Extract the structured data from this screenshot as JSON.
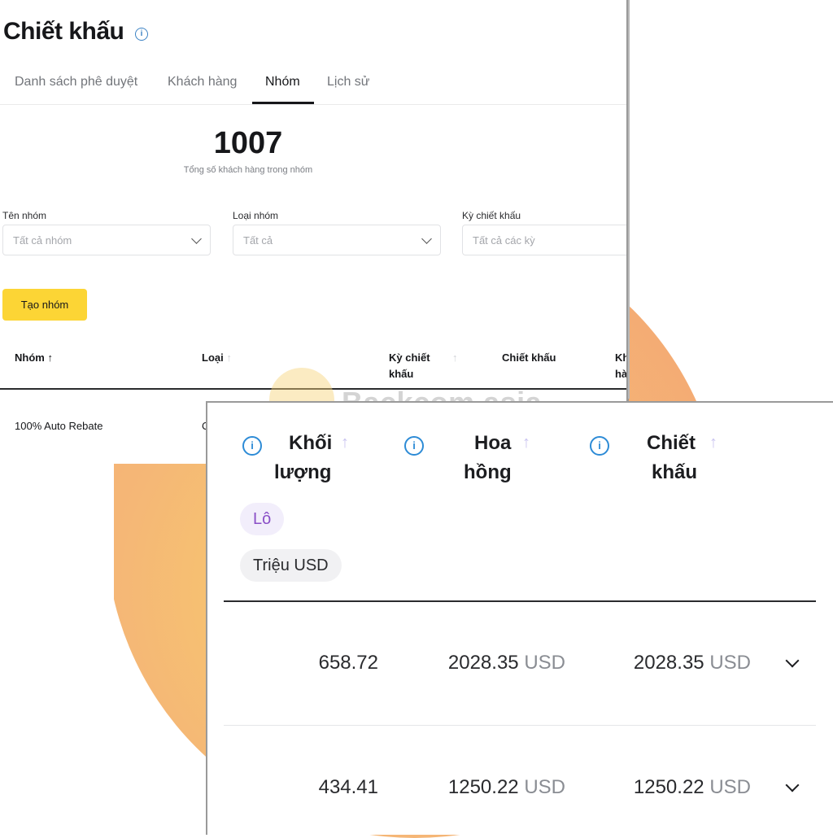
{
  "page": {
    "title": "Chiết khấu"
  },
  "tabs": [
    "Danh sách phê duyệt",
    "Khách hàng",
    "Nhóm",
    "Lịch sử"
  ],
  "active_tab": "Nhóm",
  "kpi": {
    "value": "1007",
    "label": "Tổng số khách hàng trong nhóm"
  },
  "filters": [
    {
      "label": "Tên nhóm",
      "placeholder": "Tất cả nhóm"
    },
    {
      "label": "Loại nhóm",
      "placeholder": "Tất cả"
    },
    {
      "label": "Kỳ chiết khấu",
      "placeholder": "Tất cả các kỳ"
    }
  ],
  "create_button": "Tạo nhóm",
  "table": {
    "headers": [
      "Nhóm ↑",
      "Loại",
      "Kỳ chiết",
      "khấu",
      "Chiết khấu",
      "Kh",
      "hà"
    ],
    "sort_icon": "↑",
    "rows": [
      {
        "group": "100% Auto Rebate",
        "type_partial": "C"
      }
    ]
  },
  "watermark": "Backcom.asia",
  "zoom": {
    "columns": [
      {
        "line1": "Khối",
        "line2": "lượng"
      },
      {
        "line1": "Hoa",
        "line2": "hồng"
      },
      {
        "line1": "Chiết",
        "line2": "khấu"
      }
    ],
    "info_glyph": "i",
    "sort_icon": "↑",
    "badges": [
      "Lô",
      "Triệu USD"
    ],
    "rows": [
      {
        "volume": "658.72",
        "commission": "2028.35",
        "commission_unit": "USD",
        "rebate": "2028.35",
        "rebate_unit": "USD"
      },
      {
        "volume": "434.41",
        "commission": "1250.22",
        "commission_unit": "USD",
        "rebate": "1250.22",
        "rebate_unit": "USD"
      }
    ]
  },
  "colors": {
    "accent": "#fcd535",
    "info": "#2d8bd6",
    "lot_badge_text": "#8a4fc7"
  }
}
